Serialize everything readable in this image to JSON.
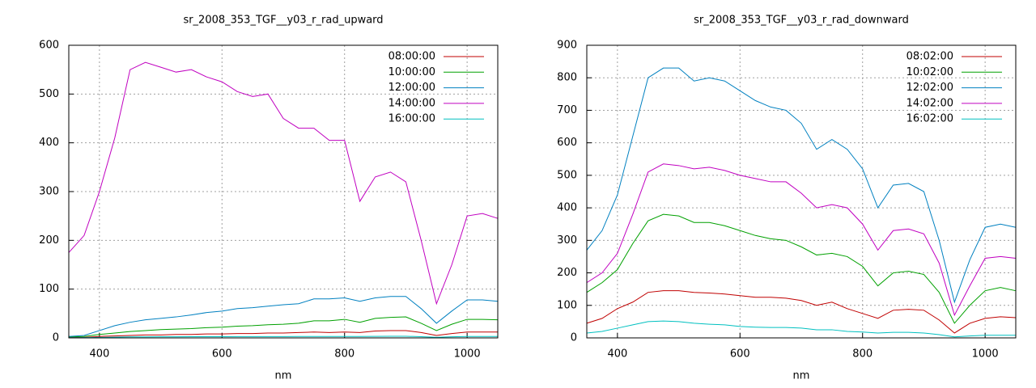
{
  "chart_data": [
    {
      "type": "line",
      "title": "sr_2008_353_TGF__y03_r_rad_upward",
      "x_label": "nm",
      "x": [
        350,
        375,
        400,
        425,
        450,
        475,
        500,
        525,
        550,
        575,
        600,
        625,
        650,
        675,
        700,
        725,
        750,
        775,
        800,
        825,
        850,
        875,
        900,
        925,
        950,
        975,
        1000,
        1025,
        1050
      ],
      "xlim": [
        350,
        1050
      ],
      "xticks": [
        400,
        600,
        800,
        1000
      ],
      "ylim": [
        0,
        600
      ],
      "yticks": [
        0,
        100,
        200,
        300,
        400,
        500,
        600
      ],
      "grid": true,
      "legend": "top-right",
      "series": [
        {
          "name": "08:00:00",
          "color": "#c00000",
          "values": [
            1,
            1,
            3,
            4,
            5,
            6,
            6,
            7,
            7,
            8,
            8,
            9,
            9,
            10,
            10,
            11,
            12,
            11,
            12,
            11,
            14,
            15,
            15,
            11,
            5,
            9,
            12,
            12,
            12
          ]
        },
        {
          "name": "10:00:00",
          "color": "#00a000",
          "values": [
            2,
            3,
            7,
            10,
            13,
            15,
            17,
            18,
            19,
            21,
            22,
            24,
            25,
            27,
            28,
            30,
            35,
            35,
            38,
            32,
            40,
            42,
            43,
            30,
            15,
            28,
            38,
            38,
            37
          ]
        },
        {
          "name": "12:00:00",
          "color": "#0080c0",
          "values": [
            3,
            5,
            15,
            25,
            32,
            37,
            40,
            43,
            47,
            52,
            55,
            60,
            62,
            65,
            68,
            70,
            80,
            80,
            82,
            75,
            82,
            85,
            85,
            60,
            30,
            55,
            78,
            78,
            75
          ]
        },
        {
          "name": "14:00:00",
          "color": "#c000c0",
          "values": [
            175,
            210,
            300,
            410,
            550,
            565,
            555,
            545,
            550,
            535,
            525,
            505,
            495,
            500,
            450,
            430,
            430,
            405,
            405,
            280,
            330,
            340,
            320,
            200,
            70,
            150,
            250,
            255,
            245
          ]
        },
        {
          "name": "16:00:00",
          "color": "#00c0c0",
          "values": [
            0.5,
            0.6,
            1,
            1.5,
            2,
            2,
            2.2,
            2.3,
            2.4,
            2.5,
            2.5,
            2.6,
            2.6,
            2.7,
            2.7,
            2.8,
            3,
            3,
            3,
            2.8,
            3.2,
            3.3,
            3.3,
            2.5,
            1.2,
            2.2,
            3,
            3,
            3
          ]
        }
      ]
    },
    {
      "type": "line",
      "title": "sr_2008_353_TGF__y03_r_rad_downward",
      "x_label": "nm",
      "x": [
        350,
        375,
        400,
        425,
        450,
        475,
        500,
        525,
        550,
        575,
        600,
        625,
        650,
        675,
        700,
        725,
        750,
        775,
        800,
        825,
        850,
        875,
        900,
        925,
        950,
        975,
        1000,
        1025,
        1050
      ],
      "xlim": [
        350,
        1050
      ],
      "xticks": [
        400,
        600,
        800,
        1000
      ],
      "ylim": [
        0,
        900
      ],
      "yticks": [
        0,
        100,
        200,
        300,
        400,
        500,
        600,
        700,
        800,
        900
      ],
      "grid": true,
      "legend": "top-right",
      "series": [
        {
          "name": "08:02:00",
          "color": "#c00000",
          "values": [
            45,
            60,
            90,
            110,
            140,
            145,
            145,
            140,
            138,
            135,
            130,
            125,
            125,
            122,
            115,
            100,
            110,
            90,
            75,
            60,
            85,
            88,
            85,
            55,
            15,
            45,
            60,
            65,
            62
          ]
        },
        {
          "name": "10:02:00",
          "color": "#00a000",
          "values": [
            140,
            170,
            210,
            290,
            360,
            380,
            375,
            355,
            355,
            345,
            330,
            315,
            305,
            300,
            280,
            255,
            260,
            250,
            220,
            160,
            200,
            205,
            195,
            140,
            45,
            100,
            145,
            155,
            145
          ]
        },
        {
          "name": "12:02:00",
          "color": "#0080c0",
          "values": [
            270,
            330,
            440,
            620,
            800,
            830,
            830,
            790,
            800,
            790,
            760,
            730,
            710,
            700,
            660,
            580,
            610,
            580,
            520,
            400,
            470,
            475,
            450,
            300,
            110,
            240,
            340,
            350,
            340
          ]
        },
        {
          "name": "14:02:00",
          "color": "#c000c0",
          "values": [
            170,
            200,
            260,
            380,
            510,
            535,
            530,
            520,
            525,
            515,
            500,
            490,
            480,
            480,
            445,
            400,
            410,
            400,
            350,
            270,
            330,
            335,
            320,
            230,
            70,
            160,
            245,
            250,
            245
          ]
        },
        {
          "name": "16:02:00",
          "color": "#00c0c0",
          "values": [
            15,
            20,
            30,
            40,
            50,
            52,
            50,
            45,
            42,
            40,
            35,
            33,
            32,
            32,
            30,
            25,
            25,
            20,
            18,
            15,
            17,
            17,
            15,
            10,
            3,
            6,
            8,
            8,
            8
          ]
        }
      ]
    }
  ]
}
